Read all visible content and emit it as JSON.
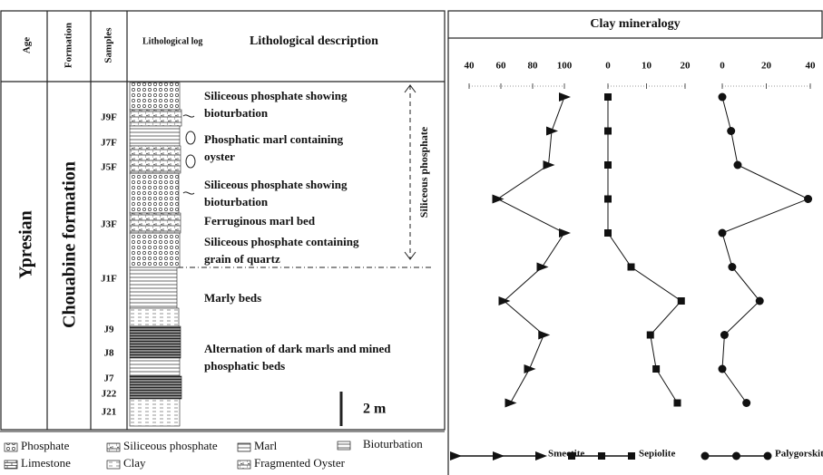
{
  "header": {
    "age": "Age",
    "formation": "Formation",
    "samples": "Samples",
    "log": "Lithological log",
    "description": "Lithological description"
  },
  "age": "Ypresian",
  "formation": "Chouabine formation",
  "descriptions": [
    [
      "Siliceous phosphate showing",
      "bioturbation"
    ],
    [
      "Phosphatic marl containing",
      "oyster"
    ],
    [
      "Siliceous phosphate showing",
      "bioturbation"
    ],
    [
      "Ferruginous marl bed"
    ],
    [
      "Siliceous phosphate containing",
      "grain of quartz"
    ],
    [
      "Marly beds"
    ],
    [
      "Alternation of dark marls and mined",
      "phosphatic beds"
    ]
  ],
  "interval_label": "Siliceous phosphate",
  "scale_label": "2 m",
  "lithology_legend": [
    "Phosphate",
    "Siliceous phosphate",
    "Marl",
    "Bioturbation",
    "Limestone",
    "Clay",
    "Fragmented Oyster"
  ],
  "chart_data": {
    "type": "line",
    "title": "Clay mineralogy",
    "categories": [
      "J9F",
      "J7F",
      "J5F",
      "J3F",
      "J1F",
      "J9",
      "J8",
      "J7",
      "J22",
      "J21"
    ],
    "series": [
      {
        "name": "Smectite",
        "color": "#111111",
        "marker": "triangle",
        "xlim": [
          40,
          100
        ],
        "xticks": [
          40,
          60,
          80,
          100
        ],
        "values": [
          100,
          92,
          90,
          58,
          100,
          86,
          62,
          87,
          78,
          66
        ]
      },
      {
        "name": "Sepiolite",
        "color": "#111111",
        "marker": "square",
        "xlim": [
          0,
          20
        ],
        "xticks": [
          0,
          10,
          20
        ],
        "values": [
          0,
          0,
          0,
          0,
          0,
          6,
          19,
          11,
          12.5,
          18
        ]
      },
      {
        "name": "Palygorskite",
        "color": "#111111",
        "marker": "circle",
        "xlim": [
          0,
          40
        ],
        "xticks": [
          0,
          20,
          40
        ],
        "values": [
          0,
          4,
          7,
          39,
          0,
          4.5,
          17,
          1,
          0,
          11
        ]
      }
    ]
  }
}
